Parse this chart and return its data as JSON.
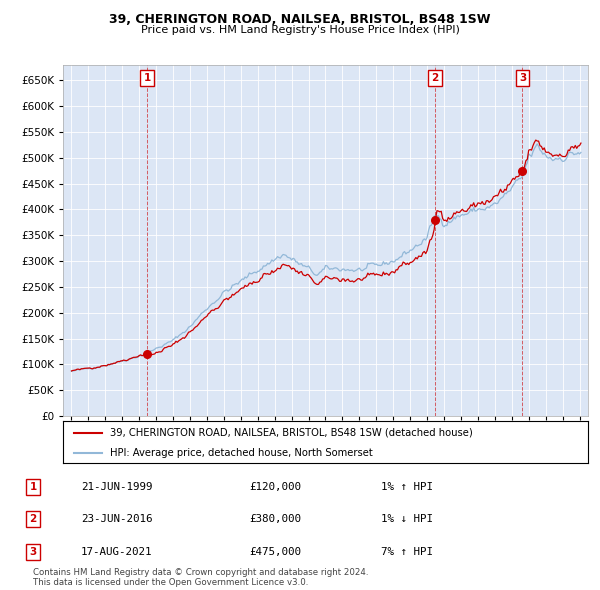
{
  "title1": "39, CHERINGTON ROAD, NAILSEA, BRISTOL, BS48 1SW",
  "title2": "Price paid vs. HM Land Registry's House Price Index (HPI)",
  "legend_line1": "39, CHERINGTON ROAD, NAILSEA, BRISTOL, BS48 1SW (detached house)",
  "legend_line2": "HPI: Average price, detached house, North Somerset",
  "footer1": "Contains HM Land Registry data © Crown copyright and database right 2024.",
  "footer2": "This data is licensed under the Open Government Licence v3.0.",
  "sales": [
    {
      "num": 1,
      "date": "21-JUN-1999",
      "price": 120000,
      "pct": "1%",
      "dir": "↑",
      "year": 1999.47
    },
    {
      "num": 2,
      "date": "23-JUN-2016",
      "price": 380000,
      "pct": "1%",
      "dir": "↓",
      "year": 2016.47
    },
    {
      "num": 3,
      "date": "17-AUG-2021",
      "price": 475000,
      "pct": "7%",
      "dir": "↑",
      "year": 2021.63
    }
  ],
  "ylim": [
    0,
    680000
  ],
  "yticks": [
    0,
    50000,
    100000,
    150000,
    200000,
    250000,
    300000,
    350000,
    400000,
    450000,
    500000,
    550000,
    600000,
    650000
  ],
  "xlim_start": 1994.5,
  "xlim_end": 2025.5,
  "red_color": "#cc0000",
  "blue_color": "#92b8d8",
  "bg_color": "#dce6f5"
}
